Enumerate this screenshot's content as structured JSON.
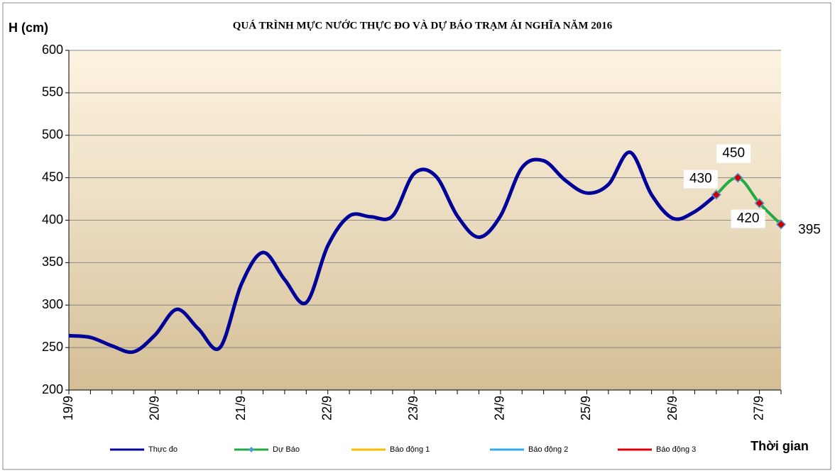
{
  "chart_data": {
    "type": "line",
    "title": "QUÁ TRÌNH MỰC NƯỚC THỰC ĐO VÀ DỰ BÁO TRẠM ÁI NGHĨA NĂM 2016",
    "y_label": "H (cm)",
    "x_label": "Thời gian",
    "categories": [
      "19/9",
      null,
      null,
      null,
      "20/9",
      null,
      null,
      null,
      "21/9",
      null,
      null,
      null,
      "22/9",
      null,
      null,
      null,
      "23/9",
      null,
      null,
      null,
      "24/9",
      null,
      null,
      null,
      "25/9",
      null,
      null,
      null,
      "26/9",
      null,
      null,
      null,
      "27/9",
      null
    ],
    "series": [
      {
        "name": "Thực đo",
        "color": "#000099",
        "values": [
          264,
          262,
          252,
          245,
          265,
          295,
          272,
          250,
          325,
          362,
          330,
          303,
          370,
          405,
          404,
          405,
          455,
          452,
          405,
          380,
          405,
          462,
          470,
          447,
          432,
          442,
          480,
          430,
          402,
          410,
          430,
          null,
          null,
          null
        ]
      },
      {
        "name": "Dự Báo",
        "color": "#22aa44",
        "marker_color": "#cc0000",
        "values": [
          null,
          null,
          null,
          null,
          null,
          null,
          null,
          null,
          null,
          null,
          null,
          null,
          null,
          null,
          null,
          null,
          null,
          null,
          null,
          null,
          null,
          null,
          null,
          null,
          null,
          null,
          null,
          null,
          null,
          null,
          430,
          450,
          420,
          395
        ]
      },
      {
        "name": "Báo động 1",
        "color": "#ffb800",
        "values": [
          null,
          null,
          null,
          null,
          null,
          null,
          null,
          null,
          null,
          null,
          null,
          null,
          null,
          null,
          null,
          null,
          null,
          null,
          null,
          null,
          null,
          null,
          null,
          null,
          null,
          null,
          null,
          null,
          null,
          null,
          null,
          null,
          null,
          null
        ]
      },
      {
        "name": "Báo động 2",
        "color": "#33aaee",
        "values": [
          null,
          null,
          null,
          null,
          null,
          null,
          null,
          null,
          null,
          null,
          null,
          null,
          null,
          null,
          null,
          null,
          null,
          null,
          null,
          null,
          null,
          null,
          null,
          null,
          null,
          null,
          null,
          null,
          null,
          null,
          null,
          null,
          null,
          null
        ]
      },
      {
        "name": "Báo động 3",
        "color": "#dd0000",
        "values": [
          null,
          null,
          null,
          null,
          null,
          null,
          null,
          null,
          null,
          null,
          null,
          null,
          null,
          null,
          null,
          null,
          null,
          null,
          null,
          null,
          null,
          null,
          null,
          null,
          null,
          null,
          null,
          null,
          null,
          null,
          null,
          null,
          null,
          null
        ]
      }
    ],
    "ylim": [
      200,
      600
    ],
    "yticks": [
      200,
      250,
      300,
      350,
      400,
      450,
      500,
      550,
      600
    ],
    "grid": true,
    "legend": "bottom"
  }
}
